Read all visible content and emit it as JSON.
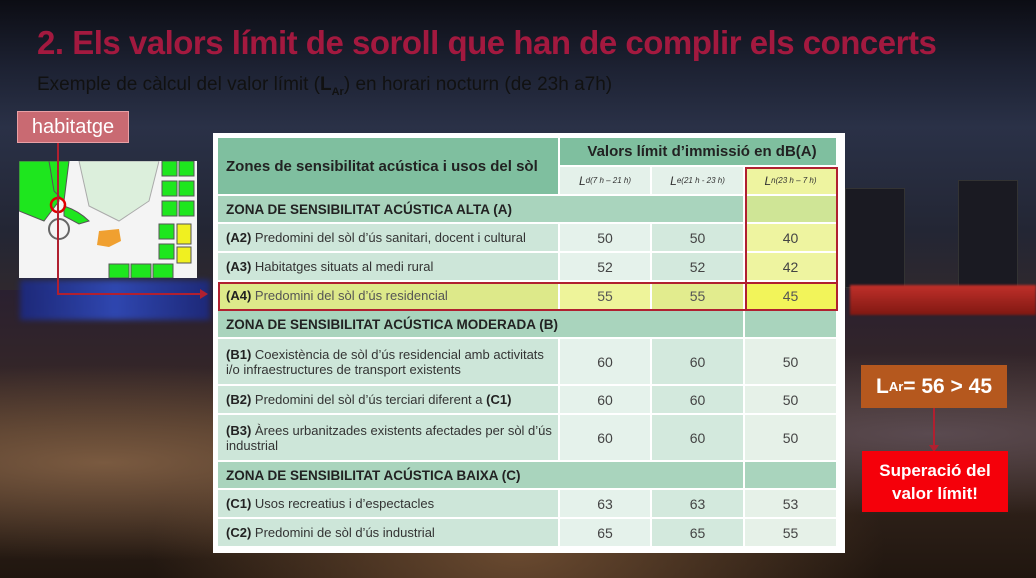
{
  "slide": {
    "title": "2. Els valors límit de soroll que han de complir els concerts",
    "subtitle_before": "Exemple de càlcul del valor límit (",
    "subtitle_symbol": "L",
    "subtitle_symbol_sub": "Ar",
    "subtitle_after": ") en horari nocturn (de 23h a7h)",
    "accent_color": "#a3193f"
  },
  "map_callout": {
    "label": "habitatge"
  },
  "table": {
    "header_left": "Zones de sensibilitat acústica i usos del sòl",
    "header_right": "Valors límit d’immissió en dB(A)",
    "columns": [
      {
        "symbol": "L",
        "sub": "d(7 h – 21 h)"
      },
      {
        "symbol": "L",
        "sub": "e(21 h - 23 h)"
      },
      {
        "symbol": "L",
        "sub": "n(23 h – 7 h)"
      }
    ],
    "rows": [
      {
        "type": "zone",
        "label": "ZONA DE SENSIBILITAT ACÚSTICA ALTA (A)"
      },
      {
        "type": "data",
        "code": "(A2)",
        "text": " Predomini del sòl d’ús sanitari, docent i cultural",
        "ld": "50",
        "le": "50",
        "ln": "40"
      },
      {
        "type": "data",
        "code": "(A3)",
        "text": " Habitatges situats al medi rural",
        "ld": "52",
        "le": "52",
        "ln": "42"
      },
      {
        "type": "data",
        "code": "(A4)",
        "text": " Predomini del sòl d’ús residencial",
        "ld": "55",
        "le": "55",
        "ln": "45",
        "highlighted": true
      },
      {
        "type": "zone",
        "label": "ZONA DE SENSIBILITAT ACÚSTICA MODERADA (B)"
      },
      {
        "type": "data",
        "code": "(B1)",
        "text": " Coexistència de sòl d’ús residencial amb activitats i/o infraestructures de transport existents",
        "ld": "60",
        "le": "60",
        "ln": "50",
        "tall": true
      },
      {
        "type": "data",
        "code": "(B2)",
        "text": " Predomini del sòl d’ús terciari diferent a ",
        "text_code": "(C1)",
        "ld": "60",
        "le": "60",
        "ln": "50"
      },
      {
        "type": "data",
        "code": "(B3)",
        "text": "  Àrees urbanitzades existents afectades per sòl d’ús industrial",
        "ld": "60",
        "le": "60",
        "ln": "50",
        "tall": true
      },
      {
        "type": "zone",
        "label": "ZONA DE SENSIBILITAT ACÚSTICA BAIXA (C)"
      },
      {
        "type": "data",
        "code": "(C1)",
        "text": " Usos recreatius i d’espectacles",
        "ld": "63",
        "le": "63",
        "ln": "53"
      },
      {
        "type": "data",
        "code": "(C2)",
        "text": " Predomini de sòl d’ús industrial",
        "ld": "65",
        "le": "65",
        "ln": "55"
      }
    ]
  },
  "result_box": {
    "symbol": "L",
    "sub": "Ar",
    "text": " = 56 > 45",
    "color": "#b5581e"
  },
  "alert_box": {
    "line1": "Superació del",
    "line2": "valor límit!",
    "color": "#f5000a"
  }
}
